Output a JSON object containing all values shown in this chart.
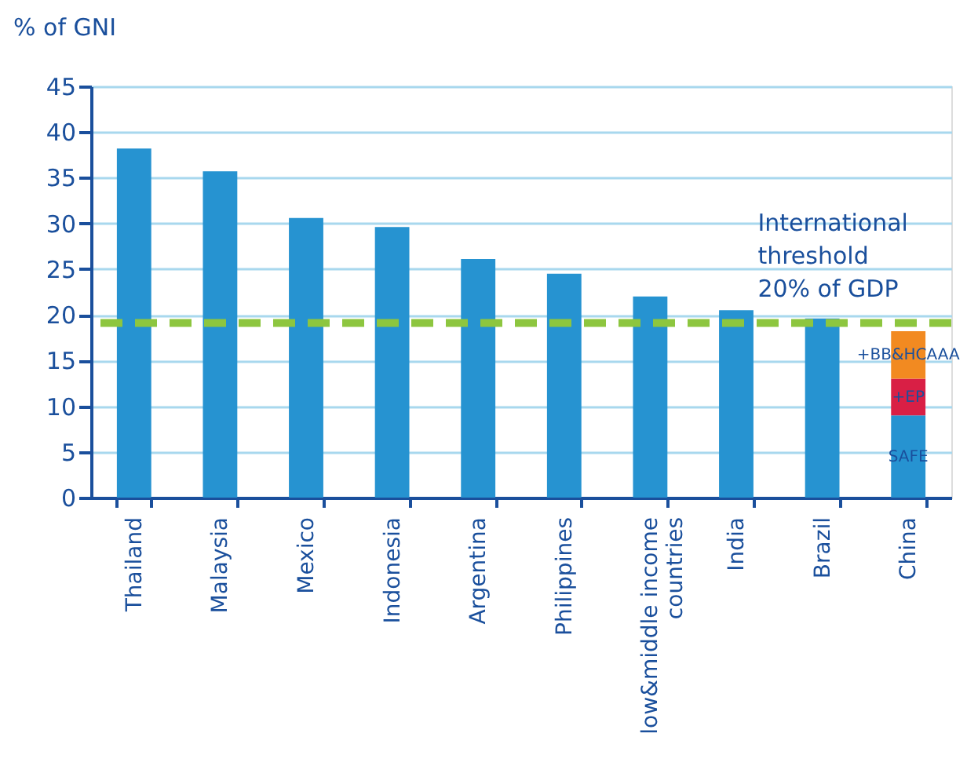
{
  "chart_data": {
    "type": "bar",
    "ylabel": "% of GNI",
    "categories": [
      "Thailand",
      "Malaysia",
      "Mexico",
      "Indonesia",
      "Argentina",
      "Philippines",
      "low&middle income countries",
      "India",
      "Brazil",
      "China"
    ],
    "series": [
      {
        "name": "SAFE",
        "color": "#2693d1",
        "values": [
          38.2,
          35.7,
          30.6,
          29.6,
          26.1,
          24.5,
          22.0,
          20.5,
          19.6,
          9.0
        ]
      },
      {
        "name": "+EP",
        "color": "#d91f45",
        "values": [
          null,
          null,
          null,
          null,
          null,
          null,
          null,
          null,
          null,
          4.0
        ]
      },
      {
        "name": "+BB&HCAAA",
        "color": "#f28a21",
        "values": [
          null,
          null,
          null,
          null,
          null,
          null,
          null,
          null,
          null,
          5.2
        ]
      }
    ],
    "stacked": true,
    "ylim": [
      0,
      45
    ],
    "yticks": [
      0,
      5,
      10,
      15,
      20,
      25,
      30,
      35,
      40,
      45
    ],
    "grid": "y",
    "ref_lines": [
      {
        "axis": "y",
        "value": 19.1,
        "label": "International\nthreshold\n20% of GDP",
        "color": "#8dc63f",
        "line_style": "dashed"
      }
    ]
  }
}
